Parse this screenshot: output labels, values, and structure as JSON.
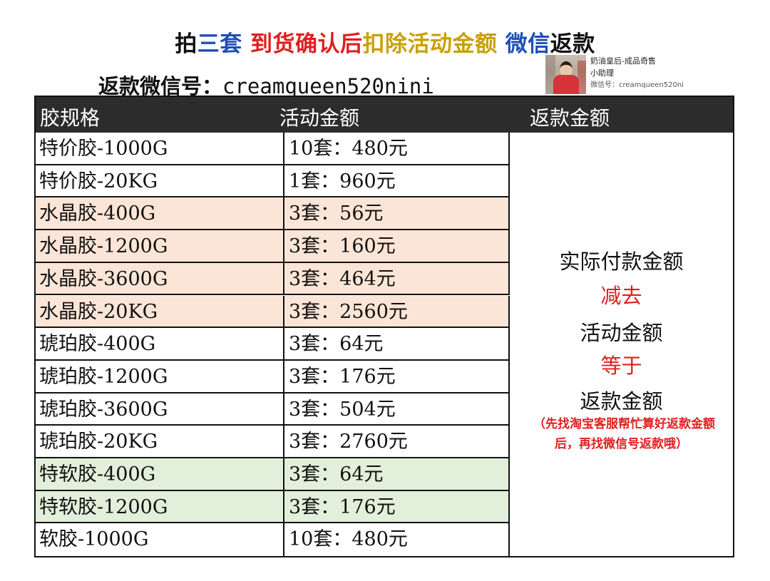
{
  "colors": {
    "blue": "#1f4fb5",
    "red": "#e01e1e",
    "gold": "#c9a000",
    "black": "#111111",
    "peach": "#fbe5d6",
    "green": "#e2efda",
    "header_bg": "#2c2c2c"
  },
  "headline": {
    "p1": "拍",
    "p2": "三套",
    "p3": "到货确认后",
    "p4": "扣除活动金额",
    "p5": "微信",
    "p6": "返款"
  },
  "wechat": {
    "label": "返款微信号：",
    "id": "creamqueen520nini"
  },
  "card": {
    "name": "奶油皇后-成品奇售",
    "role": "小助理",
    "wx": "微信号：creamqueen520ni"
  },
  "table": {
    "headers": [
      "胶规格",
      "活动金额",
      "返款金额"
    ],
    "rows": [
      {
        "spec": "特价胶-1000G",
        "amount": "10套：480元",
        "color": "white"
      },
      {
        "spec": "特价胶-20KG",
        "amount": "1套：960元",
        "color": "white"
      },
      {
        "spec": "水晶胶-400G",
        "amount": "3套：56元",
        "color": "peach"
      },
      {
        "spec": "水晶胶-1200G",
        "amount": "3套：160元",
        "color": "peach"
      },
      {
        "spec": "水晶胶-3600G",
        "amount": "3套：464元",
        "color": "peach"
      },
      {
        "spec": "水晶胶-20KG",
        "amount": "3套：2560元",
        "color": "peach"
      },
      {
        "spec": "琥珀胶-400G",
        "amount": "3套：64元",
        "color": "white"
      },
      {
        "spec": "琥珀胶-1200G",
        "amount": "3套：176元",
        "color": "white"
      },
      {
        "spec": "琥珀胶-3600G",
        "amount": "3套：504元",
        "color": "white"
      },
      {
        "spec": "琥珀胶-20KG",
        "amount": "3套：2760元",
        "color": "white"
      },
      {
        "spec": "特软胶-400G",
        "amount": "3套：64元",
        "color": "green"
      },
      {
        "spec": "特软胶-1200G",
        "amount": "3套：176元",
        "color": "green"
      },
      {
        "spec": "软胶-1000G",
        "amount": "10套：480元",
        "color": "white"
      }
    ],
    "formula": {
      "l1": "实际付款金额",
      "l2": "减去",
      "l3": "活动金额",
      "l4": "等于",
      "l5": "返款金额",
      "note1": "（先找淘宝客服帮忙算好返款金额",
      "note2": "后，再找微信号返款哦）"
    }
  }
}
